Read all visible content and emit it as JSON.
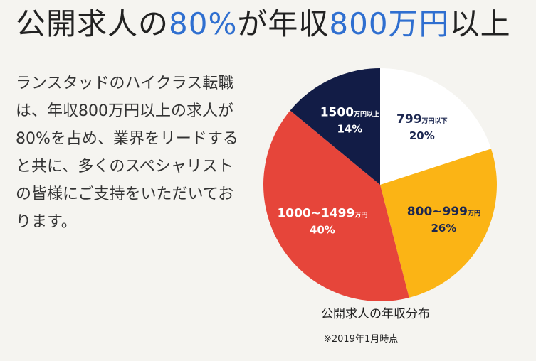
{
  "headline": {
    "p1": "公開求人の",
    "p2": "80%",
    "p3": "が年収",
    "p4": "800万円",
    "p5": "以上"
  },
  "description": "ランスタッドのハイクラス転職は、年収800万円以上の求人が80%を占め、業界をリードすると共に、多くのスペシャリストの皆様にご支持をいただいております。",
  "chart_data": {
    "type": "pie",
    "title": "公開求人の年収分布",
    "note": "※2019年1月時点",
    "slices": [
      {
        "label_main": "799",
        "label_unit": "万円以下",
        "percent_label": "20%",
        "value": 20,
        "color": "#ffffff",
        "text_color": "#1c2750"
      },
      {
        "label_main": "800~999",
        "label_unit": "万円",
        "percent_label": "26%",
        "value": 26,
        "color": "#fbb415",
        "text_color": "#1c2750"
      },
      {
        "label_main": "1000~1499",
        "label_unit": "万円",
        "percent_label": "40%",
        "value": 40,
        "color": "#e6453a",
        "text_color": "#ffffff"
      },
      {
        "label_main": "1500",
        "label_unit": "万円以上",
        "percent_label": "14%",
        "value": 14,
        "color": "#121c46",
        "text_color": "#ffffff"
      }
    ]
  }
}
